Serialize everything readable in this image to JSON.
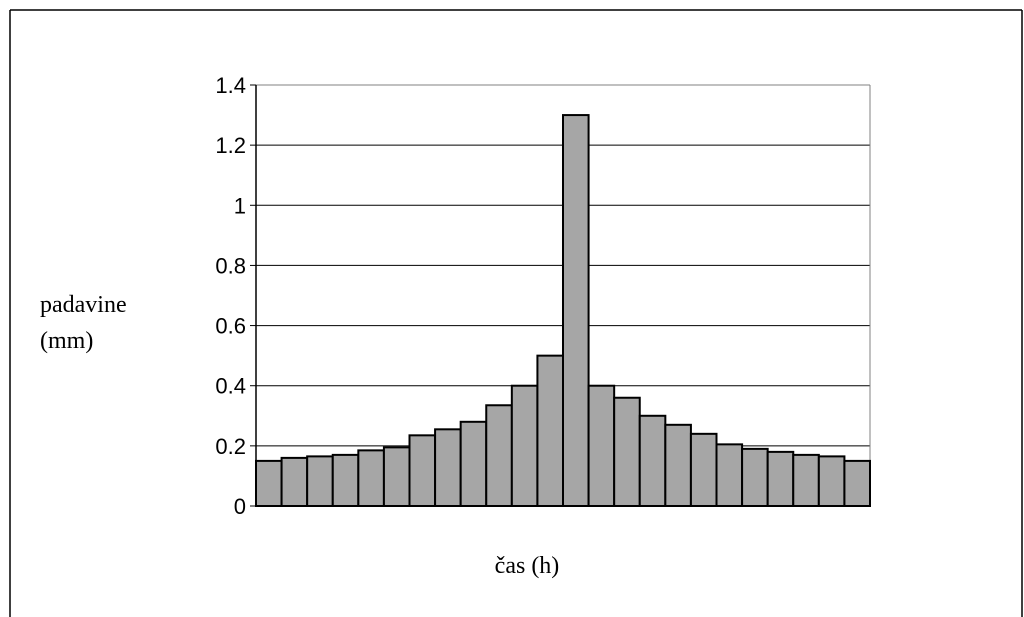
{
  "chart_data": {
    "type": "bar",
    "title": "",
    "xlabel": "čas (h)",
    "ylabel_lines": [
      "padavine",
      "(mm)"
    ],
    "ylim": [
      0,
      1.4
    ],
    "yticks": [
      "0",
      "0.2",
      "0.4",
      "0.6",
      "0.8",
      "1",
      "1.2",
      "1.4"
    ],
    "grid": true,
    "legend": "none",
    "values": [
      0.15,
      0.16,
      0.165,
      0.17,
      0.185,
      0.195,
      0.235,
      0.255,
      0.28,
      0.335,
      0.4,
      0.5,
      1.3,
      0.4,
      0.36,
      0.3,
      0.27,
      0.24,
      0.205,
      0.19,
      0.18,
      0.17,
      0.165,
      0.15
    ],
    "bar_color": "#a6a6a6",
    "edge_color": "#000000"
  }
}
